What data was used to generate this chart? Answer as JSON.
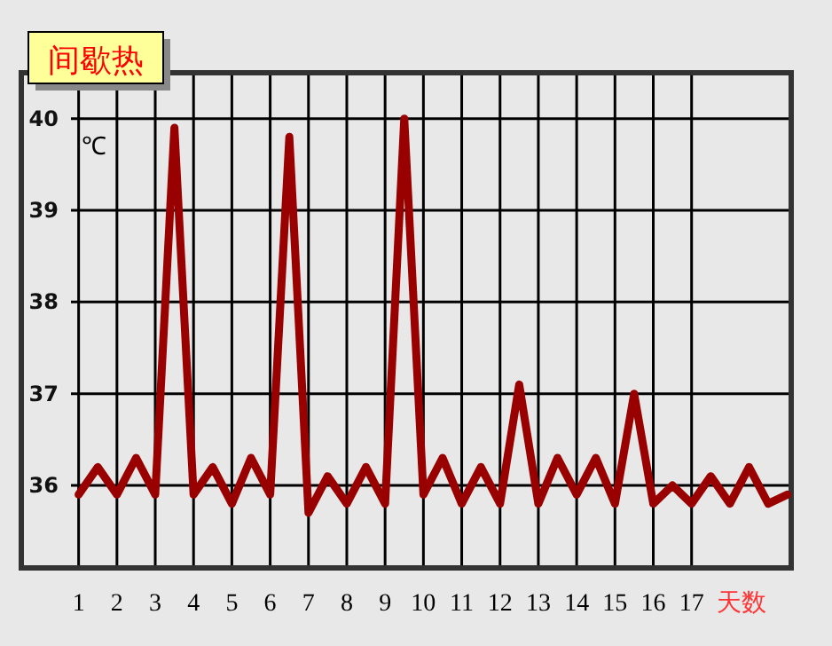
{
  "chart_data": {
    "type": "line",
    "title": "间歇热",
    "xlabel": "天数",
    "ylabel": "℃",
    "x": [
      1,
      1.5,
      2,
      2.5,
      3,
      3.5,
      4,
      4.5,
      5,
      5.5,
      6,
      6.5,
      7,
      7.5,
      8,
      8.5,
      9,
      9.5,
      10,
      10.5,
      11,
      11.5,
      12,
      12.5,
      13,
      13.5,
      14,
      14.5,
      15,
      15.5,
      16,
      16.5,
      17,
      17.5,
      18,
      18.5,
      19,
      19.5
    ],
    "series": [
      {
        "color": "#990000",
        "values": [
          35.9,
          36.2,
          35.9,
          36.3,
          35.9,
          39.9,
          35.9,
          36.2,
          35.8,
          36.3,
          35.9,
          39.8,
          35.7,
          36.1,
          35.8,
          36.2,
          35.8,
          40.0,
          35.9,
          36.3,
          35.8,
          36.2,
          35.8,
          37.1,
          35.8,
          36.3,
          35.9,
          36.3,
          35.8,
          37.0,
          35.8,
          36.0,
          35.8,
          36.1,
          35.8,
          36.2,
          35.8,
          35.9
        ]
      }
    ],
    "xlim": [
      0.8,
      19.6
    ],
    "ylim": [
      35.1,
      40.5
    ],
    "xticks": [
      1,
      2,
      3,
      4,
      5,
      6,
      7,
      8,
      9,
      10,
      11,
      12,
      13,
      14,
      15,
      16,
      17
    ],
    "yticks": [
      36,
      37,
      38,
      39,
      40
    ],
    "grid": true,
    "line_style": "solid"
  }
}
